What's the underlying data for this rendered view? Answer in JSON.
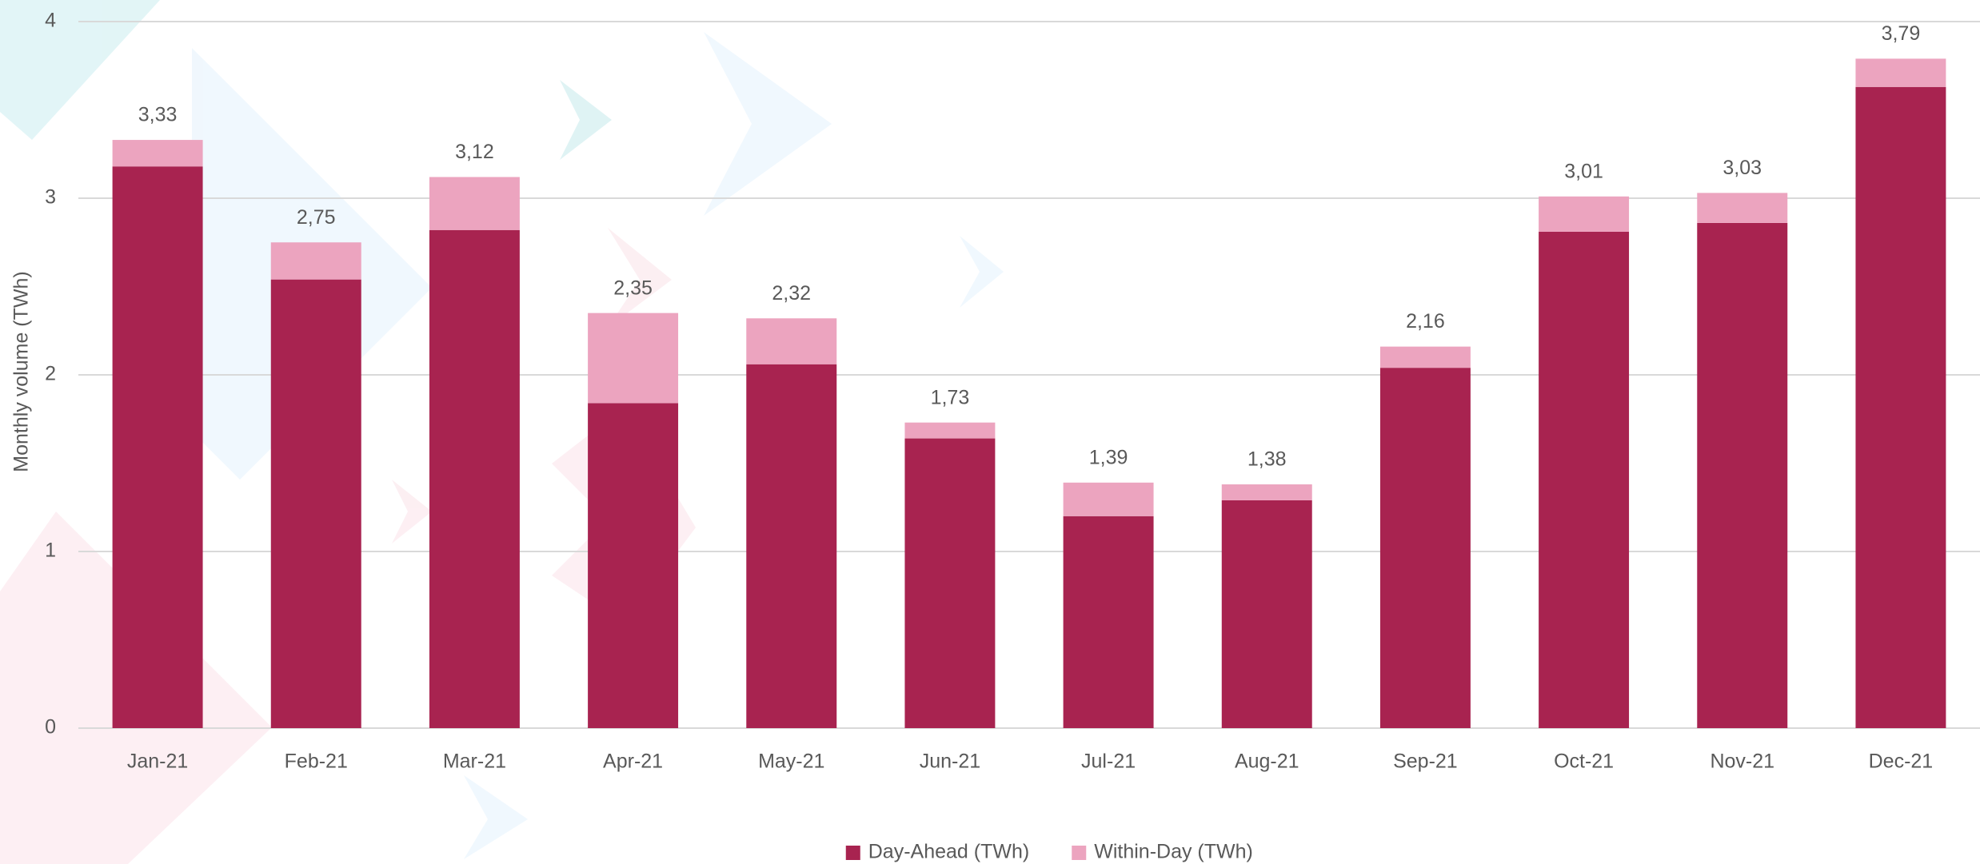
{
  "chart_data": {
    "type": "stacked_bar",
    "y_axis_label": "Monthly volume (TWh)",
    "categories": [
      "Jan-21",
      "Feb-21",
      "Mar-21",
      "Apr-21",
      "May-21",
      "Jun-21",
      "Jul-21",
      "Aug-21",
      "Sep-21",
      "Oct-21",
      "Nov-21",
      "Dec-21"
    ],
    "series": [
      {
        "name": "Day-Ahead (TWh)",
        "color": "#a82350",
        "values": [
          3.18,
          2.54,
          2.82,
          1.84,
          2.06,
          1.64,
          1.2,
          1.29,
          2.04,
          2.81,
          2.86,
          3.63
        ]
      },
      {
        "name": "Within-Day (TWh)",
        "color": "#eca4bf",
        "values": [
          0.15,
          0.21,
          0.3,
          0.51,
          0.26,
          0.09,
          0.19,
          0.09,
          0.12,
          0.2,
          0.17,
          0.16
        ]
      }
    ],
    "totals": {
      "values": [
        3.33,
        2.75,
        3.12,
        2.35,
        2.32,
        1.73,
        1.39,
        1.38,
        2.16,
        3.01,
        3.03,
        3.79
      ],
      "value_labels": [
        "3,33",
        "2,75",
        "3,12",
        "2,35",
        "2,32",
        "1,73",
        "1,39",
        "1,38",
        "2,16",
        "3,01",
        "3,03",
        "3,79"
      ]
    },
    "ylim": [
      0,
      4
    ],
    "yticks": [
      0,
      1,
      2,
      3,
      4
    ],
    "grid": true,
    "legend": "bottom"
  }
}
